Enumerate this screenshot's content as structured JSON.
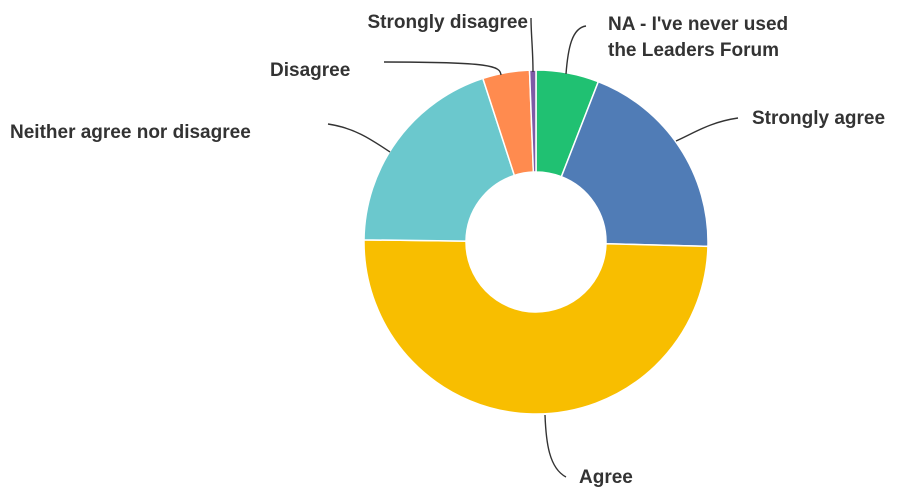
{
  "chart_data": {
    "type": "pie",
    "variant": "donut",
    "title": "",
    "legend": "none",
    "slices": [
      {
        "label": "NA - I've never used the Leaders Forum",
        "value": 5.9,
        "color": "#20c172"
      },
      {
        "label": "Strongly agree",
        "value": 19.5,
        "color": "#507cb6"
      },
      {
        "label": "Agree",
        "value": 49.8,
        "color": "#f8be00"
      },
      {
        "label": "Neither agree nor disagree",
        "value": 19.8,
        "color": "#6bc8cd"
      },
      {
        "label": "Disagree",
        "value": 4.4,
        "color": "#ff8b4f"
      },
      {
        "label": "Strongly disagree",
        "value": 0.6,
        "color": "#7d5ba6"
      }
    ]
  }
}
